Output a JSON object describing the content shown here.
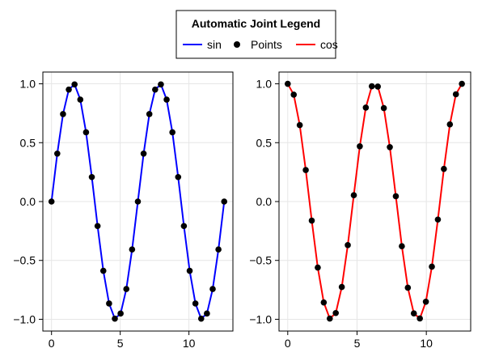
{
  "legend": {
    "title": "Automatic Joint Legend",
    "entries": [
      {
        "label": "sin",
        "kind": "line",
        "color": "#0000ff"
      },
      {
        "label": "Points",
        "kind": "marker",
        "color": "#000000"
      },
      {
        "label": "cos",
        "kind": "line",
        "color": "#ff0000"
      }
    ]
  },
  "chart_data": [
    {
      "type": "line",
      "title": "",
      "xlabel": "",
      "ylabel": "",
      "xlim": [
        -0.63,
        13.2
      ],
      "ylim": [
        -1.1,
        1.1
      ],
      "xticks": [
        0,
        5,
        10
      ],
      "yticks": [
        -1.0,
        -0.5,
        0.0,
        0.5,
        1.0
      ],
      "xtick_labels": [
        "0",
        "5",
        "10"
      ],
      "ytick_labels": [
        "−1.0",
        "−0.5",
        "0.0",
        "0.5",
        "1.0"
      ],
      "grid": true,
      "x": [
        0,
        0.4189,
        0.8378,
        1.2566,
        1.6755,
        2.0944,
        2.5133,
        2.9322,
        3.351,
        3.7699,
        4.1888,
        4.6077,
        5.0265,
        5.4454,
        5.8643,
        6.2832,
        6.7021,
        7.1209,
        7.5398,
        7.9587,
        8.3776,
        8.7965,
        9.2153,
        9.6342,
        10.0531,
        10.472,
        10.8909,
        11.3097,
        11.7286,
        12.1475,
        12.5664
      ],
      "series": [
        {
          "name": "sin",
          "color": "#0000ff",
          "marker": false,
          "y": [
            0.0,
            0.407,
            0.743,
            0.951,
            0.995,
            0.866,
            0.588,
            0.208,
            -0.208,
            -0.588,
            -0.866,
            -0.995,
            -0.951,
            -0.743,
            -0.407,
            0.0,
            0.407,
            0.743,
            0.951,
            0.995,
            0.866,
            0.588,
            0.208,
            -0.208,
            -0.588,
            -0.866,
            -0.995,
            -0.951,
            -0.743,
            -0.407,
            0.0
          ]
        },
        {
          "name": "Points",
          "color": "#000000",
          "marker": true,
          "line": false,
          "y": [
            0.0,
            0.407,
            0.743,
            0.951,
            0.995,
            0.866,
            0.588,
            0.208,
            -0.208,
            -0.588,
            -0.866,
            -0.995,
            -0.951,
            -0.743,
            -0.407,
            0.0,
            0.407,
            0.743,
            0.951,
            0.995,
            0.866,
            0.588,
            0.208,
            -0.208,
            -0.588,
            -0.866,
            -0.995,
            -0.951,
            -0.743,
            -0.407,
            0.0
          ]
        }
      ]
    },
    {
      "type": "line",
      "title": "",
      "xlabel": "",
      "ylabel": "",
      "xlim": [
        -0.63,
        13.2
      ],
      "ylim": [
        -1.1,
        1.1
      ],
      "xticks": [
        0,
        5,
        10
      ],
      "yticks": [
        -1.0,
        -0.5,
        0.0,
        0.5,
        1.0
      ],
      "xtick_labels": [
        "0",
        "5",
        "10"
      ],
      "ytick_labels": [
        "−1.0",
        "−0.5",
        "0.0",
        "0.5",
        "1.0"
      ],
      "grid": true,
      "x": [
        0,
        0.4333,
        0.8666,
        1.3,
        1.7333,
        2.1666,
        2.6,
        3.0333,
        3.4666,
        3.9,
        4.3333,
        4.7666,
        5.2,
        5.6333,
        6.0666,
        6.5,
        6.9333,
        7.3666,
        7.8,
        8.2333,
        8.6666,
        9.1,
        9.5333,
        9.9666,
        10.4,
        10.8333,
        11.2666,
        11.7,
        12.1333,
        12.5664
      ],
      "series": [
        {
          "name": "cos",
          "color": "#ff0000",
          "marker": false,
          "y": [
            1.0,
            0.908,
            0.649,
            0.268,
            -0.162,
            -0.561,
            -0.857,
            -0.994,
            -0.947,
            -0.726,
            -0.37,
            0.054,
            0.469,
            0.798,
            0.979,
            0.977,
            0.794,
            0.462,
            0.045,
            -0.379,
            -0.732,
            -0.95,
            -0.993,
            -0.851,
            -0.553,
            -0.153,
            0.277,
            0.655,
            0.911,
            1.0
          ]
        },
        {
          "name": "Points",
          "color": "#000000",
          "marker": true,
          "line": false,
          "y": [
            1.0,
            0.908,
            0.649,
            0.268,
            -0.162,
            -0.561,
            -0.857,
            -0.994,
            -0.947,
            -0.726,
            -0.37,
            0.054,
            0.469,
            0.798,
            0.979,
            0.977,
            0.794,
            0.462,
            0.045,
            -0.379,
            -0.732,
            -0.95,
            -0.993,
            -0.851,
            -0.553,
            -0.153,
            0.277,
            0.655,
            0.911,
            1.0
          ]
        }
      ]
    }
  ]
}
